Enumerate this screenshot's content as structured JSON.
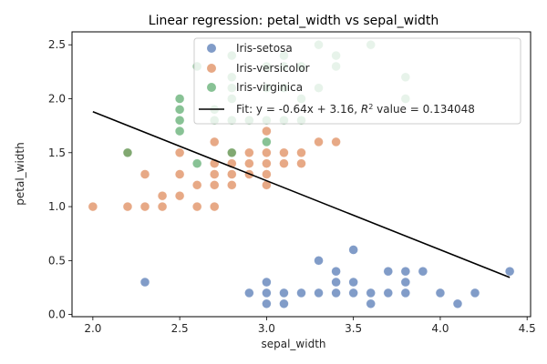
{
  "chart_data": {
    "type": "scatter",
    "title": "Linear regression: petal_width vs sepal_width",
    "xlabel": "sepal_width",
    "ylabel": "petal_width",
    "xlim": [
      1.88,
      4.52
    ],
    "ylim": [
      -0.02,
      2.62
    ],
    "xticks": [
      2.0,
      2.5,
      3.0,
      3.5,
      4.0,
      4.5
    ],
    "xtick_labels": [
      "2.0",
      "2.5",
      "3.0",
      "3.5",
      "4.0",
      "4.5"
    ],
    "yticks": [
      0.0,
      0.5,
      1.0,
      1.5,
      2.0,
      2.5
    ],
    "ytick_labels": [
      "0.0",
      "0.5",
      "1.0",
      "1.5",
      "2.0",
      "2.5"
    ],
    "grid": false,
    "legend_position": "top-right",
    "series": [
      {
        "name": "Iris-setosa",
        "color": "#4c72b0",
        "points": [
          [
            2.3,
            0.3
          ],
          [
            2.9,
            0.2
          ],
          [
            3.0,
            0.1
          ],
          [
            3.0,
            0.2
          ],
          [
            3.0,
            0.3
          ],
          [
            3.1,
            0.1
          ],
          [
            3.1,
            0.2
          ],
          [
            3.2,
            0.2
          ],
          [
            3.3,
            0.2
          ],
          [
            3.3,
            0.5
          ],
          [
            3.4,
            0.2
          ],
          [
            3.4,
            0.3
          ],
          [
            3.4,
            0.4
          ],
          [
            3.5,
            0.2
          ],
          [
            3.5,
            0.3
          ],
          [
            3.5,
            0.6
          ],
          [
            3.6,
            0.1
          ],
          [
            3.6,
            0.2
          ],
          [
            3.7,
            0.2
          ],
          [
            3.7,
            0.4
          ],
          [
            3.8,
            0.2
          ],
          [
            3.8,
            0.3
          ],
          [
            3.8,
            0.4
          ],
          [
            3.9,
            0.4
          ],
          [
            4.0,
            0.2
          ],
          [
            4.1,
            0.1
          ],
          [
            4.2,
            0.2
          ],
          [
            4.4,
            0.4
          ]
        ]
      },
      {
        "name": "Iris-versicolor",
        "color": "#dd8452",
        "points": [
          [
            2.0,
            1.0
          ],
          [
            2.2,
            1.0
          ],
          [
            2.2,
            1.5
          ],
          [
            2.3,
            1.0
          ],
          [
            2.3,
            1.3
          ],
          [
            2.4,
            1.0
          ],
          [
            2.4,
            1.1
          ],
          [
            2.5,
            1.1
          ],
          [
            2.5,
            1.3
          ],
          [
            2.5,
            1.5
          ],
          [
            2.6,
            1.0
          ],
          [
            2.6,
            1.2
          ],
          [
            2.7,
            1.0
          ],
          [
            2.7,
            1.2
          ],
          [
            2.7,
            1.3
          ],
          [
            2.7,
            1.4
          ],
          [
            2.7,
            1.6
          ],
          [
            2.8,
            1.2
          ],
          [
            2.8,
            1.3
          ],
          [
            2.8,
            1.4
          ],
          [
            2.8,
            1.5
          ],
          [
            2.9,
            1.3
          ],
          [
            2.9,
            1.4
          ],
          [
            2.9,
            1.5
          ],
          [
            3.0,
            1.2
          ],
          [
            3.0,
            1.3
          ],
          [
            3.0,
            1.4
          ],
          [
            3.0,
            1.5
          ],
          [
            3.0,
            1.7
          ],
          [
            3.1,
            1.4
          ],
          [
            3.1,
            1.5
          ],
          [
            3.2,
            1.4
          ],
          [
            3.2,
            1.5
          ],
          [
            3.3,
            1.6
          ],
          [
            3.4,
            1.6
          ]
        ]
      },
      {
        "name": "Iris-virginica",
        "color": "#55a868",
        "points": [
          [
            2.2,
            1.5
          ],
          [
            2.5,
            1.7
          ],
          [
            2.5,
            1.8
          ],
          [
            2.5,
            1.9
          ],
          [
            2.5,
            2.0
          ],
          [
            2.6,
            1.4
          ],
          [
            2.6,
            2.3
          ],
          [
            2.7,
            1.8
          ],
          [
            2.7,
            1.9
          ],
          [
            2.8,
            1.5
          ],
          [
            2.8,
            1.8
          ],
          [
            2.8,
            2.0
          ],
          [
            2.8,
            2.1
          ],
          [
            2.8,
            2.2
          ],
          [
            2.8,
            2.4
          ],
          [
            2.9,
            1.8
          ],
          [
            3.0,
            1.6
          ],
          [
            3.0,
            1.8
          ],
          [
            3.0,
            2.1
          ],
          [
            3.0,
            2.3
          ],
          [
            3.1,
            1.8
          ],
          [
            3.1,
            2.1
          ],
          [
            3.1,
            2.3
          ],
          [
            3.1,
            2.4
          ],
          [
            3.2,
            1.8
          ],
          [
            3.2,
            2.0
          ],
          [
            3.2,
            2.3
          ],
          [
            3.3,
            2.1
          ],
          [
            3.3,
            2.5
          ],
          [
            3.4,
            2.3
          ],
          [
            3.4,
            2.4
          ],
          [
            3.6,
            2.5
          ],
          [
            3.8,
            2.0
          ],
          [
            3.8,
            2.2
          ]
        ]
      }
    ],
    "fit": {
      "label": "Fit: y = -0.64x + 3.16, R² value = 0.134048",
      "label_main": "Fit: y = -0.64x + 3.16, ",
      "label_r": "R",
      "label_sup": "2",
      "label_tail": " value = 0.134048",
      "slope": -0.64,
      "intercept": 3.16,
      "x_range": [
        2.0,
        4.4
      ],
      "color": "#000000"
    }
  }
}
